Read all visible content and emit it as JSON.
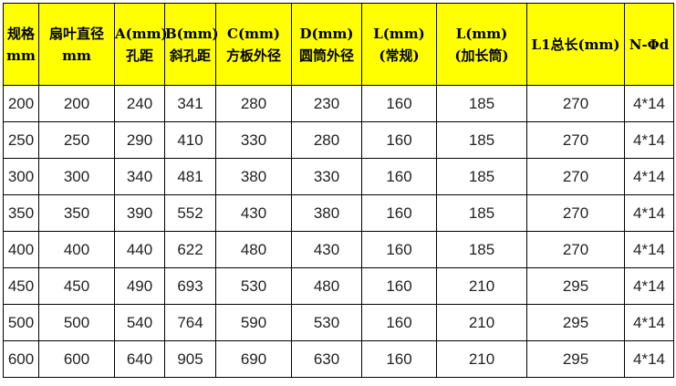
{
  "table": {
    "header": [
      [
        "规格",
        "mm"
      ],
      [
        "扇叶直径",
        "mm"
      ],
      [
        "A(mm)",
        "孔距"
      ],
      [
        "B(mm)",
        "斜孔距"
      ],
      [
        "C(mm)",
        "方板外径"
      ],
      [
        "D(mm)",
        "圆筒外径"
      ],
      [
        "L(mm)",
        "(常规)"
      ],
      [
        "L(mm)",
        "(加长筒)"
      ],
      [
        "L1总长(mm)"
      ],
      [
        "N-Φd"
      ]
    ],
    "rows": [
      [
        "200",
        "200",
        "240",
        "341",
        "280",
        "230",
        "160",
        "185",
        "270",
        "4*14"
      ],
      [
        "250",
        "250",
        "290",
        "410",
        "330",
        "280",
        "160",
        "185",
        "270",
        "4*14"
      ],
      [
        "300",
        "300",
        "340",
        "481",
        "380",
        "330",
        "160",
        "185",
        "270",
        "4*14"
      ],
      [
        "350",
        "350",
        "390",
        "552",
        "430",
        "380",
        "160",
        "185",
        "270",
        "4*14"
      ],
      [
        "400",
        "400",
        "440",
        "622",
        "480",
        "430",
        "160",
        "185",
        "270",
        "4*14"
      ],
      [
        "450",
        "450",
        "490",
        "693",
        "530",
        "480",
        "160",
        "210",
        "295",
        "4*14"
      ],
      [
        "500",
        "500",
        "540",
        "764",
        "590",
        "530",
        "160",
        "210",
        "295",
        "4*14"
      ],
      [
        "600",
        "600",
        "640",
        "905",
        "690",
        "630",
        "160",
        "210",
        "295",
        "4*14"
      ]
    ]
  }
}
